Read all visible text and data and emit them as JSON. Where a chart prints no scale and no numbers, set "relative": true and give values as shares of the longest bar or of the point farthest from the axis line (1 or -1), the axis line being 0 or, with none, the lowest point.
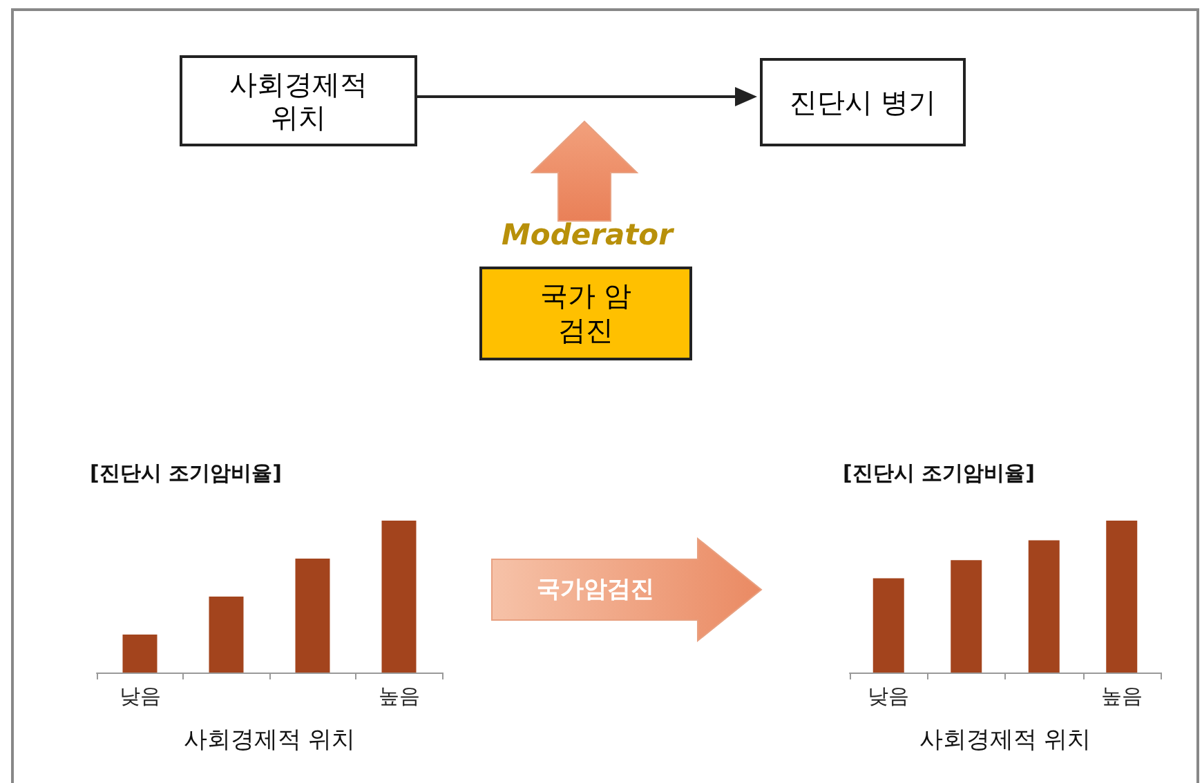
{
  "chart_data": [
    {
      "type": "other",
      "annotations": [
        "사회경제적 위치",
        "진단시 병기",
        "Moderator",
        "국가 암검진",
        "국가암검진"
      ]
    },
    {
      "type": "bar",
      "title": "[진단시 조기암비율]",
      "xlabel": "사회경제적 위치",
      "categories": [
        "낮음",
        null,
        null,
        "높음"
      ],
      "values": [
        0.25,
        0.5,
        0.75,
        1
      ],
      "color": "#a3441d",
      "relative": true
    },
    {
      "type": "bar",
      "title": "[진단시 조기암비율]",
      "xlabel": "사회경제적 위치",
      "categories": [
        "낮음",
        null,
        null,
        "높음"
      ],
      "values": [
        0.62,
        0.74,
        0.87,
        1
      ],
      "color": "#a3441d",
      "relative": true
    }
  ]
}
